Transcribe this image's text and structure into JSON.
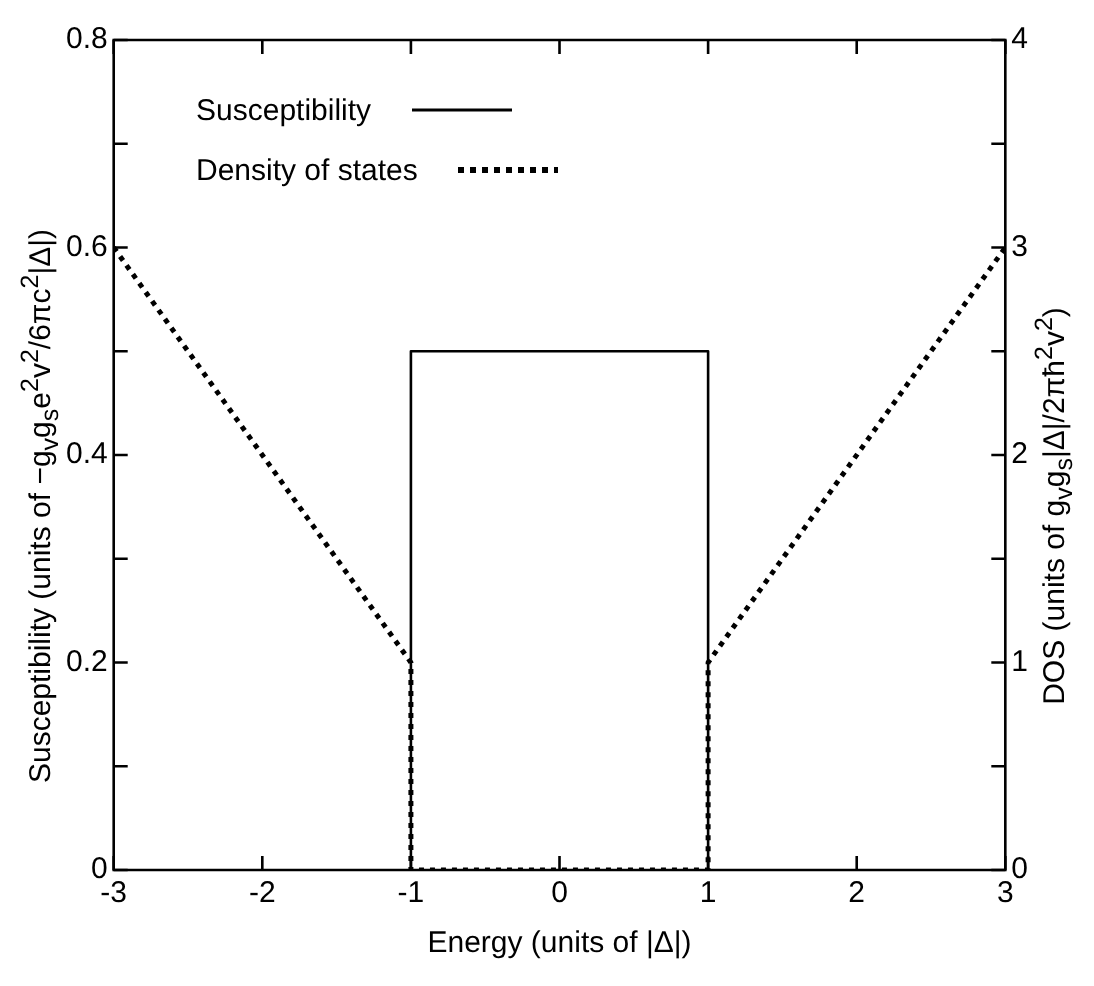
{
  "chart_data": {
    "type": "line",
    "xlabel": "Energy (units of |Δ|)",
    "ylabel": "Susceptibility (units of −g$_{v}$g$_{s}$e$^{2}$v$^{2}$/6πc$^{2}$|Δ|)",
    "y2label": "DOS (units of g$_{v}$g$_{s}$|Δ|/2πħ$^{2}$v$^{2}$)",
    "xlim": [
      -3,
      3
    ],
    "xticks": [
      -3,
      -2,
      -1,
      0,
      1,
      2,
      3
    ],
    "ylim": [
      0,
      0.8
    ],
    "yticks": [
      0,
      {
        "value": 0.1,
        "label": null
      },
      0.2,
      {
        "value": 0.3,
        "label": null
      },
      0.4,
      {
        "value": 0.5,
        "label": null
      },
      0.6,
      {
        "value": 0.7,
        "label": null
      },
      0.8
    ],
    "y2lim": [
      0,
      4
    ],
    "y2ticks": [
      0,
      {
        "value": 0.5,
        "label": null
      },
      1,
      {
        "value": 1.5,
        "label": null
      },
      2,
      {
        "value": 2.5,
        "label": null
      },
      3,
      {
        "value": 3.5,
        "label": null
      },
      4
    ],
    "legend": "top left",
    "series": [
      {
        "name": "Susceptibility",
        "color": "#000000",
        "line_style": "solid",
        "x": [
          -1,
          -1,
          1,
          1
        ],
        "values": [
          0,
          0.5,
          0.5,
          0
        ]
      },
      {
        "name": "Density of states",
        "color": "#000000",
        "line_style": "dotted",
        "axis": "y2",
        "x": [
          -3,
          -1,
          -1,
          1,
          1,
          3
        ],
        "values": [
          3,
          1,
          0,
          0,
          1,
          3
        ]
      }
    ]
  }
}
